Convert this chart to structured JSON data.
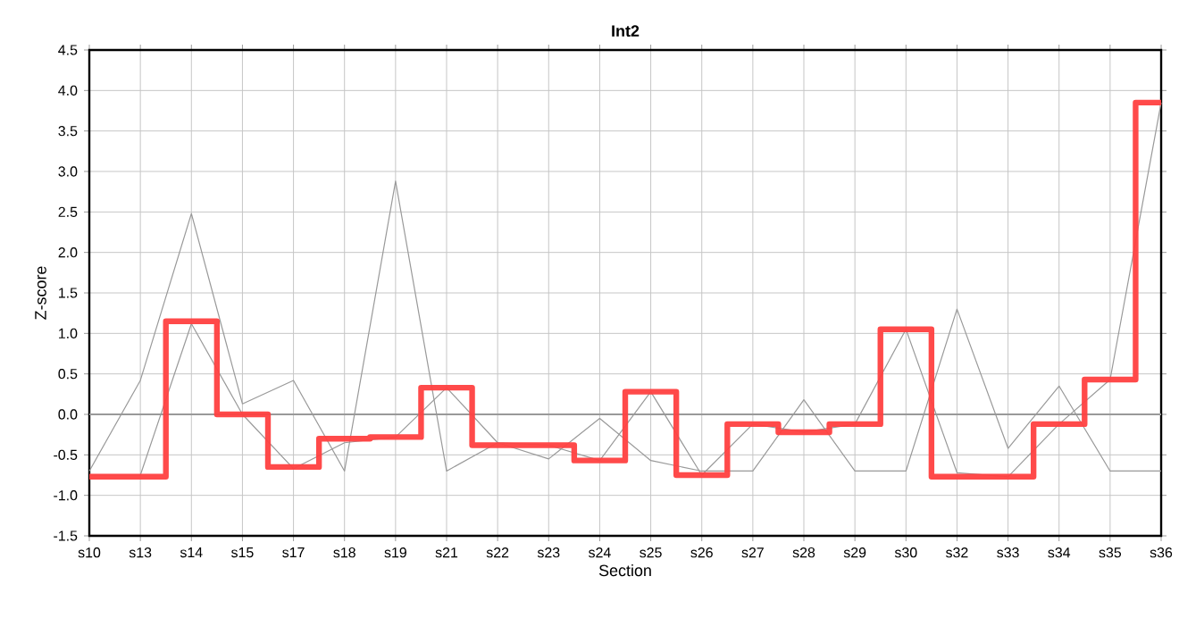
{
  "chart_data": {
    "type": "line",
    "title": "Int2",
    "xlabel": "Section",
    "ylabel": "Z-score",
    "categories": [
      "s10",
      "s13",
      "s14",
      "s15",
      "s17",
      "s18",
      "s19",
      "s21",
      "s22",
      "s23",
      "s24",
      "s25",
      "s26",
      "s27",
      "s28",
      "s29",
      "s30",
      "s32",
      "s33",
      "s34",
      "s35",
      "s36"
    ],
    "series": [
      {
        "color": "#999999",
        "values": [
          -0.7,
          0.42,
          2.48,
          0.13,
          0.42,
          -0.7,
          2.88,
          -0.7,
          -0.35,
          -0.55,
          -0.05,
          -0.57,
          -0.7,
          -0.7,
          0.18,
          -0.7,
          -0.7,
          1.3,
          -0.42,
          0.35,
          -0.7,
          -0.7
        ]
      },
      {
        "color": "#999999",
        "values": [
          -0.75,
          -0.75,
          1.12,
          0.0,
          -0.67,
          -0.35,
          -0.28,
          0.33,
          -0.35,
          -0.38,
          -0.57,
          0.28,
          -0.75,
          -0.12,
          -0.22,
          -0.12,
          1.05,
          -0.72,
          -0.77,
          -0.12,
          0.43,
          3.85
        ]
      },
      {
        "type": "step",
        "color": "#ff4040",
        "values": [
          -0.77,
          -0.77,
          1.15,
          0.0,
          -0.65,
          -0.3,
          -0.28,
          0.33,
          -0.38,
          -0.38,
          -0.57,
          0.28,
          -0.75,
          -0.12,
          -0.22,
          -0.12,
          1.05,
          -0.77,
          -0.77,
          -0.12,
          0.43,
          3.85
        ]
      }
    ],
    "ylim": [
      -1.5,
      4.5
    ],
    "yticks": [
      -1.5,
      {
        "value": -1,
        "label": "-1.0"
      },
      -0.5,
      {
        "value": 0,
        "label": "0.0"
      },
      0.5,
      {
        "value": 1,
        "label": "1.0"
      },
      1.5,
      {
        "value": 2,
        "label": "2.0"
      },
      2.5,
      {
        "value": 3,
        "label": "3.0"
      },
      3.5,
      {
        "value": 4,
        "label": "4.0"
      },
      4.5
    ],
    "ref_lines": [
      {
        "axis": "y",
        "value": 0,
        "color": "#999999"
      }
    ],
    "grid": true
  }
}
